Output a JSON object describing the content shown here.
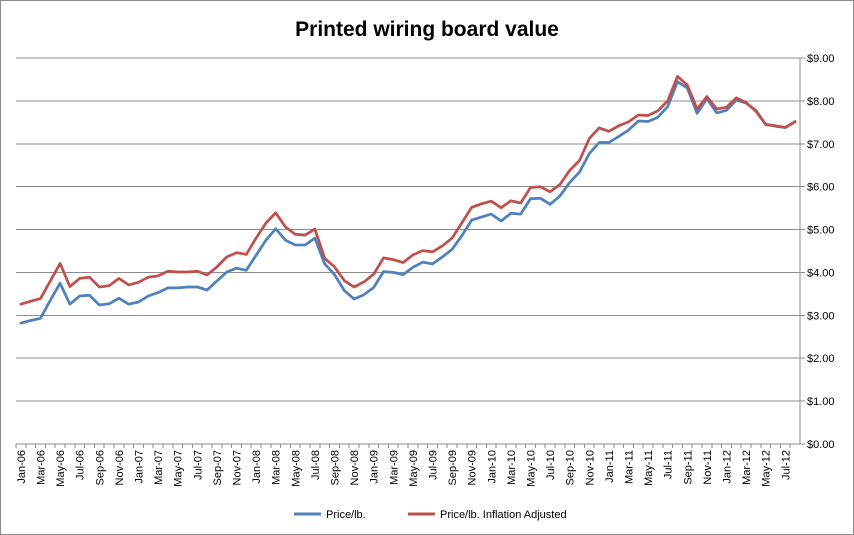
{
  "chart_data": {
    "type": "line",
    "title": "Printed wiring board value",
    "xlabel": "",
    "ylabel": "",
    "ylim": [
      0,
      9
    ],
    "y_ticks": [
      "$0.00",
      "$1.00",
      "$2.00",
      "$3.00",
      "$4.00",
      "$5.00",
      "$6.00",
      "$7.00",
      "$8.00",
      "$9.00"
    ],
    "y_axis_position": "right",
    "grid": "horizontal",
    "legend_position": "bottom",
    "categories": [
      "Jan-06",
      "Feb-06",
      "Mar-06",
      "Apr-06",
      "May-06",
      "Jun-06",
      "Jul-06",
      "Aug-06",
      "Sep-06",
      "Oct-06",
      "Nov-06",
      "Dec-06",
      "Jan-07",
      "Feb-07",
      "Mar-07",
      "Apr-07",
      "May-07",
      "Jun-07",
      "Jul-07",
      "Aug-07",
      "Sep-07",
      "Oct-07",
      "Nov-07",
      "Dec-07",
      "Jan-08",
      "Feb-08",
      "Mar-08",
      "Apr-08",
      "May-08",
      "Jun-08",
      "Jul-08",
      "Aug-08",
      "Sep-08",
      "Oct-08",
      "Nov-08",
      "Dec-08",
      "Jan-09",
      "Feb-09",
      "Mar-09",
      "Apr-09",
      "May-09",
      "Jun-09",
      "Jul-09",
      "Aug-09",
      "Sep-09",
      "Oct-09",
      "Nov-09",
      "Dec-09",
      "Jan-10",
      "Feb-10",
      "Mar-10",
      "Apr-10",
      "May-10",
      "Jun-10",
      "Jul-10",
      "Aug-10",
      "Sep-10",
      "Oct-10",
      "Nov-10",
      "Dec-10",
      "Jan-11",
      "Feb-11",
      "Mar-11",
      "Apr-11",
      "May-11",
      "Jun-11",
      "Jul-11",
      "Aug-11",
      "Sep-11",
      "Oct-11",
      "Nov-11",
      "Dec-11",
      "Jan-12",
      "Feb-12",
      "Mar-12",
      "Apr-12",
      "May-12",
      "Jun-12",
      "Jul-12",
      "Aug-12"
    ],
    "tick_labels_shown": [
      "Jan-06",
      "Mar-06",
      "May-06",
      "Jul-06",
      "Sep-06",
      "Nov-06",
      "Jan-07",
      "Mar-07",
      "May-07",
      "Jul-07",
      "Sep-07",
      "Nov-07",
      "Jan-08",
      "Mar-08",
      "May-08",
      "Jul-08",
      "Sep-08",
      "Nov-08",
      "Jan-09",
      "Mar-09",
      "May-09",
      "Jul-09",
      "Sep-09",
      "Nov-09",
      "Jan-10",
      "Mar-10",
      "May-10",
      "Jul-10",
      "Sep-10",
      "Nov-10",
      "Jan-11",
      "Mar-11",
      "May-11",
      "Jul-11",
      "Sep-11",
      "Nov-11",
      "Jan-12",
      "Mar-12",
      "May-12",
      "Jul-12"
    ],
    "series": [
      {
        "name": "Price/lb.",
        "color": "#4f81bd",
        "values": [
          2.82,
          2.88,
          2.93,
          3.35,
          3.75,
          3.26,
          3.45,
          3.47,
          3.24,
          3.27,
          3.4,
          3.26,
          3.31,
          3.45,
          3.53,
          3.64,
          3.64,
          3.66,
          3.66,
          3.59,
          3.8,
          4.01,
          4.1,
          4.05,
          4.4,
          4.75,
          5.02,
          4.75,
          4.64,
          4.64,
          4.8,
          4.2,
          3.95,
          3.58,
          3.38,
          3.48,
          3.65,
          4.02,
          4.0,
          3.95,
          4.12,
          4.24,
          4.2,
          4.36,
          4.54,
          4.86,
          5.22,
          5.29,
          5.36,
          5.2,
          5.38,
          5.36,
          5.72,
          5.73,
          5.59,
          5.78,
          6.1,
          6.34,
          6.77,
          7.03,
          7.03,
          7.17,
          7.32,
          7.53,
          7.52,
          7.62,
          7.87,
          8.45,
          8.3,
          7.71,
          8.05,
          7.72,
          7.78,
          8.02,
          7.95,
          7.78,
          7.45,
          7.41,
          7.38,
          7.52
        ]
      },
      {
        "name": "Price/lb. Inflation Adjusted",
        "color": "#c0504d",
        "values": [
          3.26,
          3.33,
          3.39,
          3.8,
          4.21,
          3.67,
          3.86,
          3.89,
          3.66,
          3.69,
          3.86,
          3.71,
          3.77,
          3.89,
          3.92,
          4.03,
          4.01,
          4.01,
          4.03,
          3.94,
          4.13,
          4.36,
          4.46,
          4.42,
          4.8,
          5.15,
          5.39,
          5.06,
          4.89,
          4.87,
          5.01,
          4.33,
          4.13,
          3.81,
          3.66,
          3.78,
          3.96,
          4.34,
          4.3,
          4.23,
          4.41,
          4.51,
          4.48,
          4.62,
          4.8,
          5.16,
          5.52,
          5.6,
          5.66,
          5.51,
          5.67,
          5.62,
          5.98,
          6.0,
          5.88,
          6.05,
          6.38,
          6.61,
          7.12,
          7.37,
          7.29,
          7.42,
          7.51,
          7.67,
          7.66,
          7.77,
          8.0,
          8.57,
          8.37,
          7.81,
          8.1,
          7.81,
          7.85,
          8.07,
          7.96,
          7.76,
          7.45,
          7.42,
          7.38,
          7.51
        ]
      }
    ]
  }
}
